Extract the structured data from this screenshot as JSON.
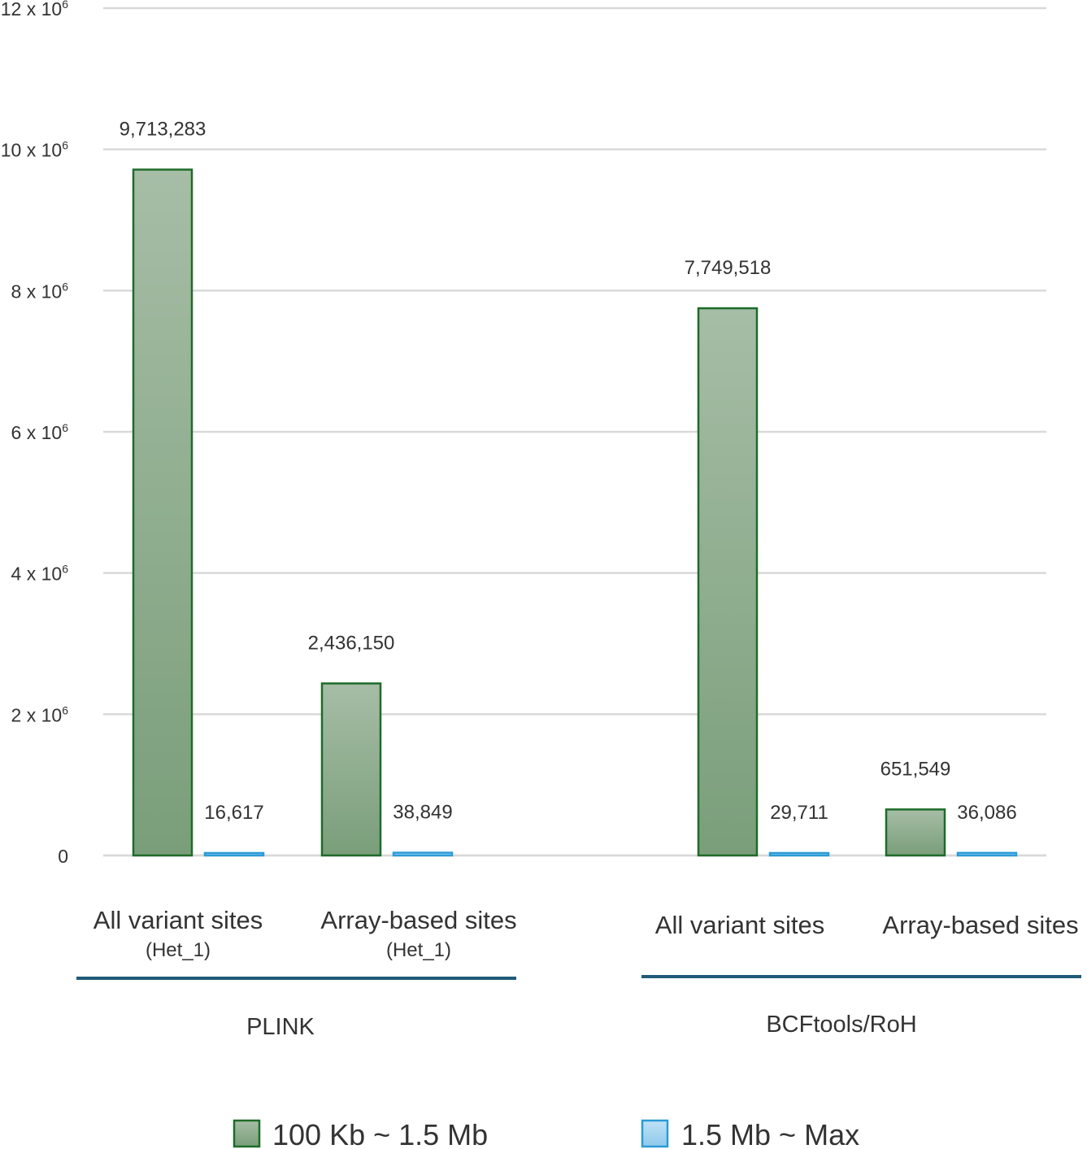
{
  "chart_data": {
    "type": "bar",
    "ylim": [
      0,
      12000000
    ],
    "yticks": [
      {
        "value": 0,
        "label": "0"
      },
      {
        "value": 2000000,
        "label": "2 x 10",
        "sup": "6"
      },
      {
        "value": 4000000,
        "label": "4 x 10",
        "sup": "6"
      },
      {
        "value": 6000000,
        "label": "6 x 10",
        "sup": "6"
      },
      {
        "value": 8000000,
        "label": "8 x 10",
        "sup": "6"
      },
      {
        "value": 10000000,
        "label": "10 x 10",
        "sup": "6"
      },
      {
        "value": 12000000,
        "label": "12 x 10",
        "sup": "6"
      }
    ],
    "grid": true,
    "legend_position": "bottom",
    "categories": [
      {
        "label": "All variant sites",
        "sublabel": "(Het_1)",
        "group": "PLINK"
      },
      {
        "label": "Array-based sites",
        "sublabel": "(Het_1)",
        "group": "PLINK"
      },
      {
        "label": "All variant sites",
        "sublabel": "",
        "group": "BCFtools/RoH"
      },
      {
        "label": "Array-based sites",
        "sublabel": "",
        "group": "BCFtools/RoH"
      }
    ],
    "groups": [
      "PLINK",
      "BCFtools/RoH"
    ],
    "series": [
      {
        "name": "100 Kb ~ 1.5 Mb",
        "color": "#8aaa8a",
        "border": "#1e6b2a",
        "values": [
          9713283,
          2436150,
          7749518,
          651549
        ],
        "labels": [
          "9,713,283",
          "2,436,150",
          "7,749,518",
          "651,549"
        ]
      },
      {
        "name": "1.5 Mb ~ Max",
        "color": "#9dd0ee",
        "border": "#2a9bd6",
        "values": [
          16617,
          38849,
          29711,
          36086
        ],
        "labels": [
          "16,617",
          "38,849",
          "29,711",
          "36,086"
        ]
      }
    ]
  }
}
